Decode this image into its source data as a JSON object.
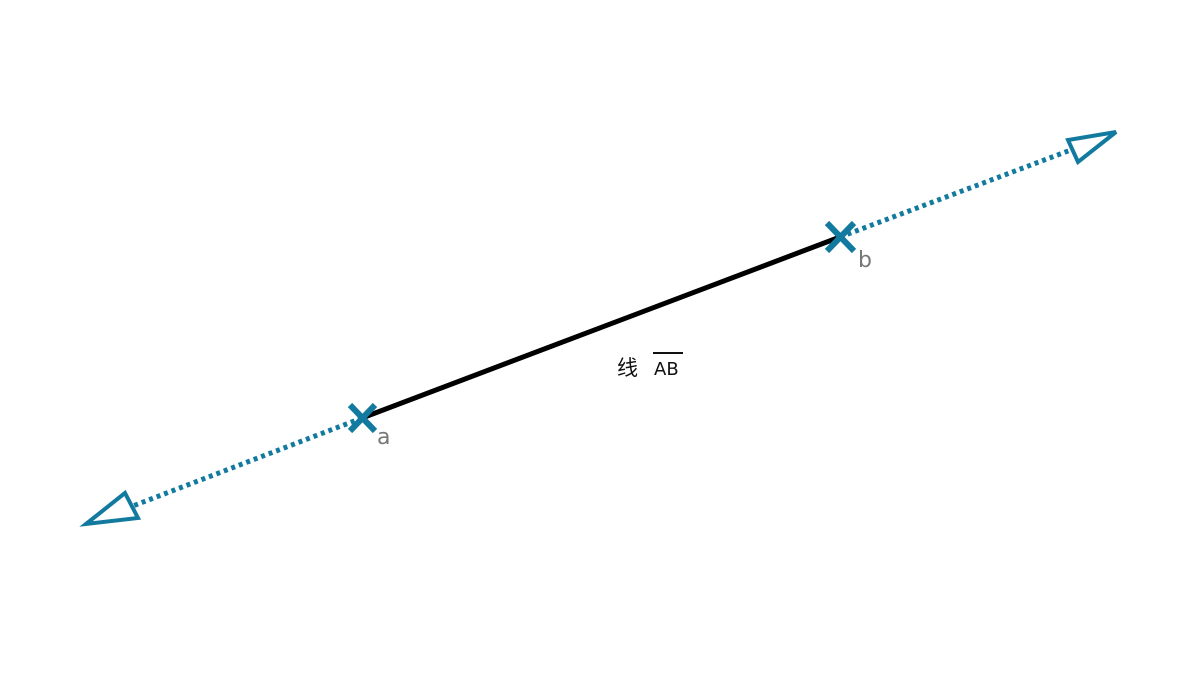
{
  "diagram": {
    "point_a_label": "a",
    "point_b_label": "b",
    "caption_prefix": "线",
    "caption_segment": "AB"
  },
  "colors": {
    "accent": "#137a9f",
    "segment": "#000000",
    "label": "#777777",
    "background": "#ffffff"
  },
  "icons": {
    "point_marker": "x-cross-icon",
    "ray_end": "open-triangle-arrow-icon"
  }
}
